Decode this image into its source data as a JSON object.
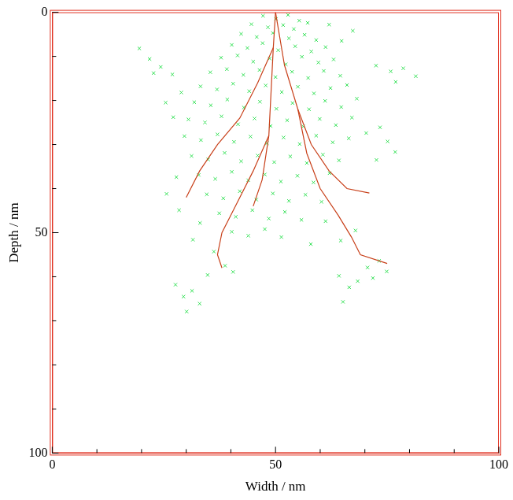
{
  "chart_data": {
    "type": "scatter",
    "xlabel": "Width / nm",
    "ylabel": "Depth / nm",
    "xlim": [
      0,
      100
    ],
    "ylim": [
      100,
      0
    ],
    "xticks": [
      0,
      50,
      100
    ],
    "yticks": [
      0,
      50,
      100
    ],
    "grid": false,
    "series": [
      {
        "color": "#33e055",
        "marker": "cross",
        "values": [
          [
            47.2,
            0.8
          ],
          [
            50.1,
            1.5
          ],
          [
            52.8,
            0.6
          ],
          [
            55.3,
            1.9
          ],
          [
            44.6,
            2.7
          ],
          [
            48.3,
            3.4
          ],
          [
            51.7,
            2.9
          ],
          [
            54.1,
            3.8
          ],
          [
            57.2,
            2.4
          ],
          [
            42.3,
            4.9
          ],
          [
            45.8,
            5.6
          ],
          [
            49.4,
            4.7
          ],
          [
            53.0,
            5.9
          ],
          [
            56.5,
            5.1
          ],
          [
            59.1,
            6.3
          ],
          [
            40.2,
            7.4
          ],
          [
            43.7,
            8.1
          ],
          [
            47.1,
            7.0
          ],
          [
            50.6,
            8.6
          ],
          [
            54.4,
            7.7
          ],
          [
            58.0,
            8.9
          ],
          [
            61.2,
            7.9
          ],
          [
            37.8,
            10.3
          ],
          [
            41.5,
            9.8
          ],
          [
            45.0,
            11.2
          ],
          [
            48.7,
            10.5
          ],
          [
            52.3,
            11.8
          ],
          [
            55.9,
            10.1
          ],
          [
            59.6,
            11.4
          ],
          [
            63.0,
            10.7
          ],
          [
            35.4,
            13.6
          ],
          [
            39.1,
            12.9
          ],
          [
            42.8,
            14.2
          ],
          [
            46.4,
            13.1
          ],
          [
            50.0,
            14.7
          ],
          [
            53.7,
            13.5
          ],
          [
            57.3,
            14.9
          ],
          [
            60.8,
            13.3
          ],
          [
            64.5,
            14.4
          ],
          [
            33.2,
            16.8
          ],
          [
            36.9,
            17.5
          ],
          [
            40.5,
            16.2
          ],
          [
            44.1,
            17.9
          ],
          [
            47.8,
            16.6
          ],
          [
            51.4,
            18.1
          ],
          [
            55.0,
            16.9
          ],
          [
            58.6,
            18.4
          ],
          [
            62.3,
            17.2
          ],
          [
            66.0,
            16.5
          ],
          [
            31.8,
            20.4
          ],
          [
            35.5,
            21.1
          ],
          [
            39.2,
            19.8
          ],
          [
            42.9,
            21.6
          ],
          [
            46.5,
            20.3
          ],
          [
            50.2,
            21.9
          ],
          [
            53.8,
            20.6
          ],
          [
            57.5,
            22.0
          ],
          [
            61.1,
            20.1
          ],
          [
            64.7,
            21.5
          ],
          [
            68.2,
            19.6
          ],
          [
            30.5,
            24.3
          ],
          [
            34.2,
            25.0
          ],
          [
            37.9,
            23.6
          ],
          [
            41.6,
            25.4
          ],
          [
            45.3,
            24.1
          ],
          [
            48.9,
            25.8
          ],
          [
            52.6,
            24.5
          ],
          [
            56.2,
            25.9
          ],
          [
            59.9,
            24.2
          ],
          [
            63.5,
            25.6
          ],
          [
            67.1,
            23.9
          ],
          [
            29.6,
            28.1
          ],
          [
            33.3,
            29.0
          ],
          [
            37.0,
            27.7
          ],
          [
            40.7,
            29.4
          ],
          [
            44.4,
            28.2
          ],
          [
            48.1,
            29.7
          ],
          [
            51.8,
            28.4
          ],
          [
            55.4,
            29.9
          ],
          [
            59.1,
            28.0
          ],
          [
            62.8,
            29.5
          ],
          [
            66.4,
            28.6
          ],
          [
            70.3,
            27.4
          ],
          [
            31.2,
            32.6
          ],
          [
            34.9,
            33.4
          ],
          [
            38.6,
            31.9
          ],
          [
            42.3,
            33.8
          ],
          [
            46.0,
            32.5
          ],
          [
            49.7,
            34.0
          ],
          [
            53.3,
            32.7
          ],
          [
            57.0,
            34.2
          ],
          [
            60.6,
            32.3
          ],
          [
            64.2,
            33.6
          ],
          [
            32.8,
            36.9
          ],
          [
            36.5,
            37.8
          ],
          [
            40.2,
            36.2
          ],
          [
            43.9,
            38.1
          ],
          [
            47.6,
            36.8
          ],
          [
            51.2,
            38.4
          ],
          [
            54.9,
            37.1
          ],
          [
            58.5,
            38.6
          ],
          [
            62.1,
            36.5
          ],
          [
            34.6,
            41.3
          ],
          [
            38.3,
            42.2
          ],
          [
            42.0,
            40.6
          ],
          [
            45.7,
            42.5
          ],
          [
            49.4,
            41.1
          ],
          [
            53.0,
            42.8
          ],
          [
            56.7,
            41.4
          ],
          [
            60.3,
            43.0
          ],
          [
            37.4,
            45.6
          ],
          [
            41.1,
            46.4
          ],
          [
            44.8,
            44.9
          ],
          [
            48.5,
            46.8
          ],
          [
            52.1,
            45.3
          ],
          [
            55.8,
            47.1
          ],
          [
            40.2,
            49.8
          ],
          [
            43.9,
            50.7
          ],
          [
            47.6,
            49.2
          ],
          [
            51.3,
            51.0
          ],
          [
            19.5,
            8.2
          ],
          [
            21.8,
            10.6
          ],
          [
            24.3,
            12.4
          ],
          [
            26.9,
            14.1
          ],
          [
            22.7,
            13.8
          ],
          [
            64.8,
            6.5
          ],
          [
            67.3,
            4.2
          ],
          [
            62.0,
            2.8
          ],
          [
            72.5,
            12.1
          ],
          [
            75.8,
            13.4
          ],
          [
            78.6,
            12.7
          ],
          [
            81.4,
            14.5
          ],
          [
            76.9,
            15.8
          ],
          [
            73.4,
            26.1
          ],
          [
            75.1,
            29.3
          ],
          [
            76.8,
            31.7
          ],
          [
            72.6,
            33.5
          ],
          [
            27.8,
            37.4
          ],
          [
            25.6,
            41.2
          ],
          [
            28.4,
            44.9
          ],
          [
            33.1,
            47.8
          ],
          [
            31.5,
            51.6
          ],
          [
            36.2,
            54.3
          ],
          [
            38.7,
            57.5
          ],
          [
            34.8,
            59.6
          ],
          [
            40.5,
            58.9
          ],
          [
            27.6,
            61.8
          ],
          [
            29.4,
            64.5
          ],
          [
            31.3,
            63.2
          ],
          [
            30.1,
            67.9
          ],
          [
            33.0,
            66.1
          ],
          [
            64.2,
            59.8
          ],
          [
            66.5,
            62.4
          ],
          [
            65.1,
            65.7
          ],
          [
            68.4,
            61.0
          ],
          [
            70.6,
            57.9
          ],
          [
            73.2,
            56.4
          ],
          [
            74.9,
            58.8
          ],
          [
            71.8,
            60.3
          ],
          [
            67.9,
            49.5
          ],
          [
            64.6,
            51.8
          ],
          [
            61.2,
            47.4
          ],
          [
            57.9,
            52.6
          ],
          [
            25.4,
            20.5
          ],
          [
            27.1,
            23.8
          ],
          [
            28.9,
            18.2
          ]
        ]
      },
      {
        "type": "line",
        "color": "#c8401a",
        "values": [
          [
            50,
            0
          ],
          [
            49.5,
            8
          ],
          [
            49,
            18
          ],
          [
            48.5,
            28
          ],
          [
            47,
            38
          ],
          [
            45,
            44
          ]
        ]
      },
      {
        "type": "line",
        "color": "#c8401a",
        "values": [
          [
            49.5,
            8
          ],
          [
            46,
            16
          ],
          [
            42,
            24
          ],
          [
            37,
            30
          ],
          [
            33,
            36
          ],
          [
            30,
            42
          ]
        ]
      },
      {
        "type": "line",
        "color": "#c8401a",
        "values": [
          [
            48.5,
            28
          ],
          [
            45,
            36
          ],
          [
            41,
            44
          ],
          [
            38,
            50
          ],
          [
            37,
            55
          ],
          [
            38,
            58
          ]
        ]
      },
      {
        "type": "line",
        "color": "#c8401a",
        "values": [
          [
            50,
            0
          ],
          [
            52,
            12
          ],
          [
            55,
            22
          ],
          [
            58,
            30
          ],
          [
            62,
            36
          ],
          [
            66,
            40
          ],
          [
            71,
            41
          ]
        ]
      },
      {
        "type": "line",
        "color": "#c8401a",
        "values": [
          [
            55,
            22
          ],
          [
            57,
            32
          ],
          [
            60,
            40
          ],
          [
            64,
            46
          ],
          [
            67,
            51
          ],
          [
            69,
            55
          ],
          [
            75,
            57
          ]
        ]
      }
    ]
  }
}
